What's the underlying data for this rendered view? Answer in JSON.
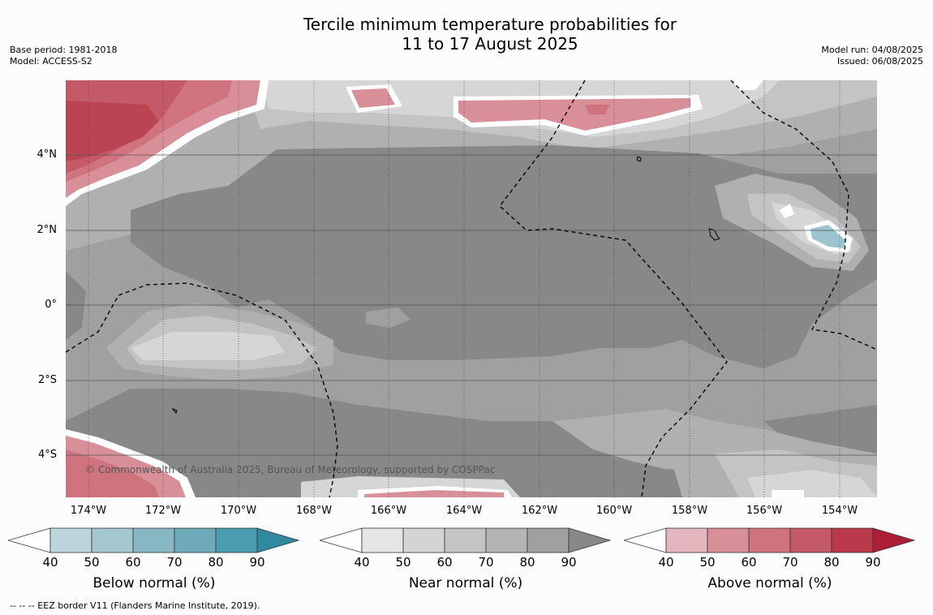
{
  "header": {
    "title_line1": "Tercile minimum temperature probabilities for",
    "title_line2": "11 to 17 August 2025",
    "base_period": "Base period: 1981-2018",
    "model": "Model: ACCESS-S2",
    "model_run": "Model run: 04/08/2025",
    "issued": "Issued: 06/08/2025"
  },
  "map": {
    "lat_labels": [
      "4°N",
      "2°N",
      "0°",
      "2°S",
      "4°S"
    ],
    "lon_labels": [
      "174°W",
      "172°W",
      "170°W",
      "168°W",
      "166°W",
      "164°W",
      "162°W",
      "160°W",
      "158°W",
      "156°W",
      "154°W"
    ],
    "attribution": "© Commonwealth of Australia 2025, Bureau of Meteorology, supported by COSPPac",
    "colors": {
      "near_40": "#d6d6d6",
      "near_50": "#c4c4c4",
      "near_60": "#b0b0b0",
      "near_70": "#a0a0a0",
      "near_80": "#888888",
      "above_50": "#d88f98",
      "above_60": "#cf737e",
      "above_70": "#c45968",
      "above_80": "#bb4453",
      "below_50": "#9cc4cf"
    }
  },
  "colorbars": [
    {
      "label": "Below normal (%)",
      "ticks": [
        "40",
        "50",
        "60",
        "70",
        "80",
        "90"
      ],
      "colors": [
        "#ffffff",
        "#bcd5dc",
        "#a5c7cf",
        "#88b7c4",
        "#6eaab7",
        "#4a9dae",
        "#2f8aa0"
      ]
    },
    {
      "label": "Near normal (%)",
      "ticks": [
        "40",
        "50",
        "60",
        "70",
        "80",
        "90"
      ],
      "colors": [
        "#ffffff",
        "#e6e6e6",
        "#d4d4d4",
        "#c4c4c4",
        "#b4b4b4",
        "#a0a0a0",
        "#888888"
      ]
    },
    {
      "label": "Above normal (%)",
      "ticks": [
        "40",
        "50",
        "60",
        "70",
        "80",
        "90"
      ],
      "colors": [
        "#ffffff",
        "#e2b6bc",
        "#d98f98",
        "#cf737e",
        "#c45968",
        "#ba3a4c",
        "#ad1f36"
      ]
    }
  ],
  "footnote": "--  --  -- EEZ border V11 (Flanders Marine Institute, 2019)."
}
